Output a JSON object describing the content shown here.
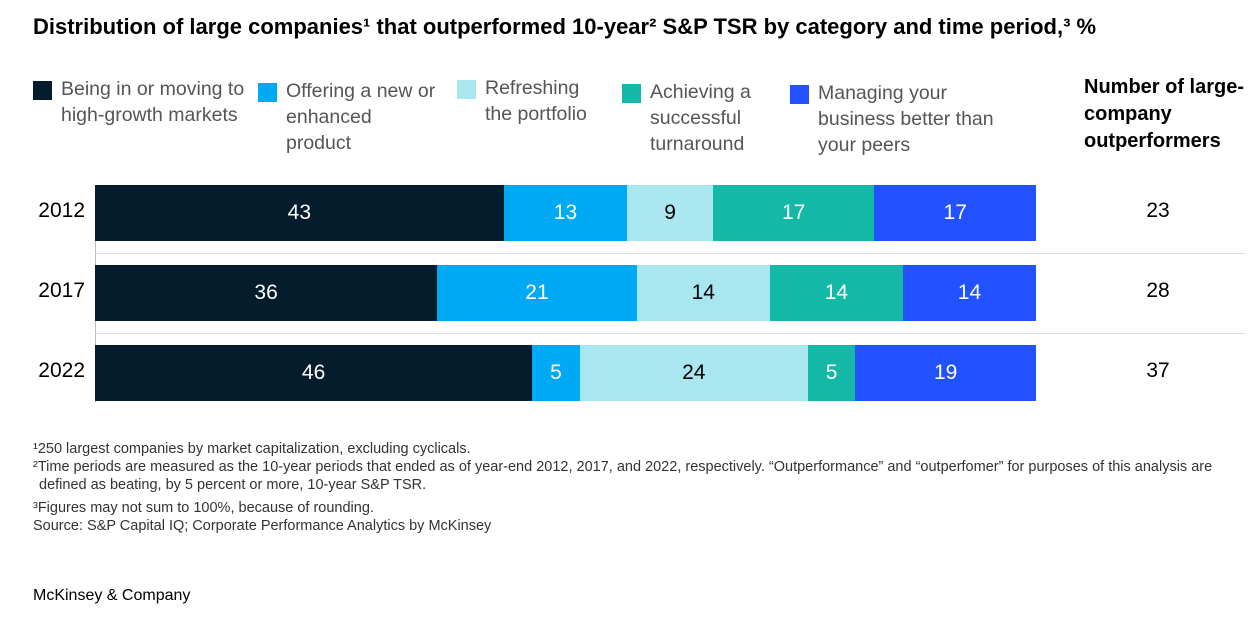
{
  "chart_data": {
    "type": "stacked-bar-horizontal",
    "title": "Distribution of large companies¹ that outperformed 10-year² S&P TSR by category and time period,³ %",
    "categories": [
      "2012",
      "2017",
      "2022"
    ],
    "series": [
      {
        "name": "Being in or moving to high-growth markets",
        "color": "#051c2c",
        "values": [
          43,
          36,
          46
        ]
      },
      {
        "name": "Offering a new or enhanced product",
        "color": "#00a9f4",
        "values": [
          13,
          21,
          5
        ]
      },
      {
        "name": "Refreshing the portfolio",
        "color": "#aae6f0",
        "values": [
          9,
          14,
          24
        ]
      },
      {
        "name": "Achieving a successful turnaround",
        "color": "#14b8a6",
        "values": [
          17,
          14,
          5
        ]
      },
      {
        "name": "Managing your business better than your peers",
        "color": "#2251ff",
        "values": [
          17,
          14,
          19
        ]
      }
    ],
    "xlim": [
      0,
      99
    ],
    "extra_column": {
      "title": "Number of large-company outperformers",
      "values": [
        23,
        28,
        37
      ]
    },
    "footnotes": [
      "¹250 largest companies by market capitalization, excluding cyclicals.",
      "²Time periods are measured as the 10-year periods that ended as of year-end 2012, 2017, and 2022, respectively. “Outperformance” and “outperfomer” for purposes of this analysis are defined as beating, by 5 percent or more, 10-year S&P TSR.",
      "³Figures may not sum to 100%, because of rounding.",
      "Source: S&P Capital IQ; Corporate Performance Analytics by McKinsey"
    ],
    "brand": "McKinsey & Company"
  }
}
